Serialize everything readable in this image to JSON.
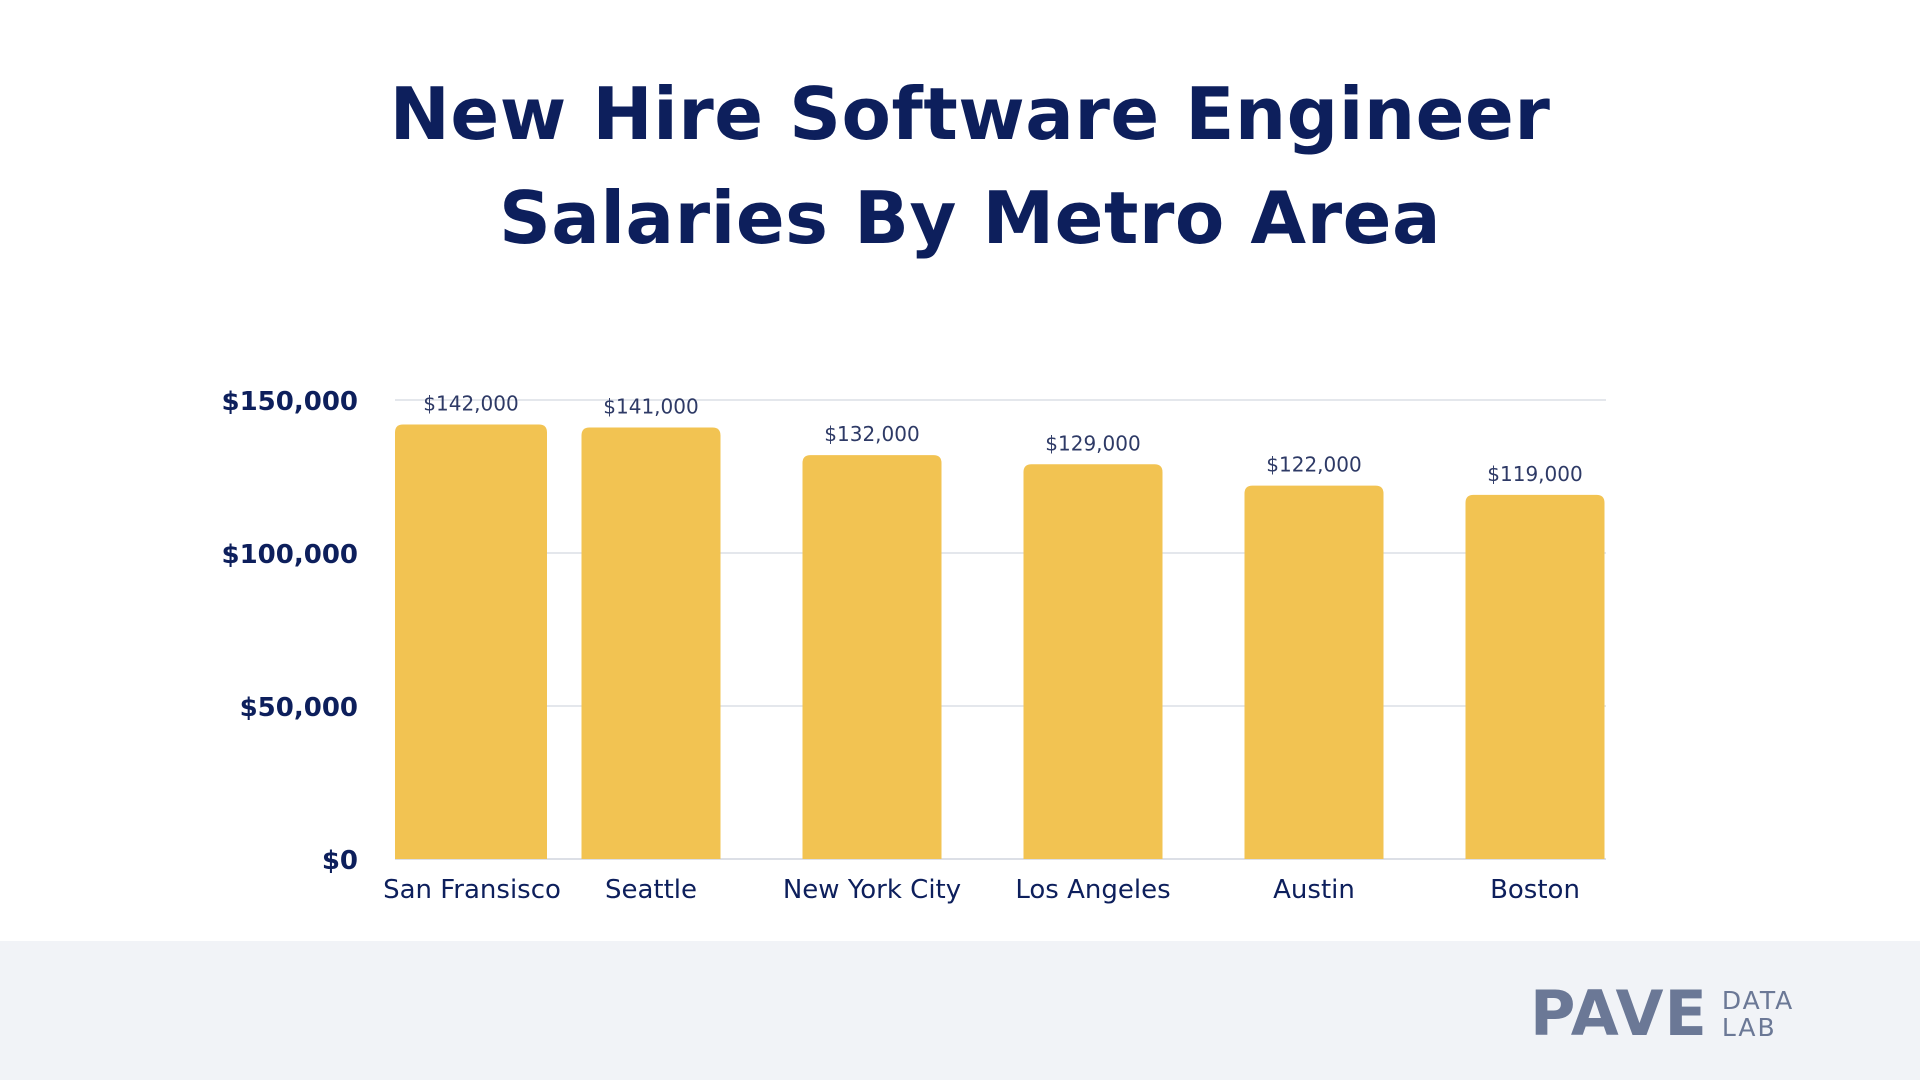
{
  "title_lines": [
    "New Hire Software Engineer",
    "Salaries By Metro Area"
  ],
  "chart_data": {
    "type": "bar",
    "title": "New Hire Software Engineer Salaries By Metro Area",
    "categories": [
      "San Fransisco",
      "Seattle",
      "New York City",
      "Los Angeles",
      "Austin",
      "Boston"
    ],
    "values": [
      142000,
      141000,
      132000,
      129000,
      122000,
      119000
    ],
    "value_labels": [
      "$142,000",
      "$141,000",
      "$132,000",
      "$129,000",
      "$122,000",
      "$119,000"
    ],
    "y_ticks": [
      0,
      50000,
      100000,
      150000
    ],
    "y_tick_labels": [
      "$0",
      "$50,000",
      "$100,000",
      "$150,000"
    ],
    "ylim": [
      0,
      150000
    ],
    "grid": true,
    "legend": "none",
    "bar_color": "#f2c352",
    "grid_color": "#dcdfe6",
    "axis_label_color": "#0d1f5c",
    "value_label_color": "#2e3a66"
  },
  "footer": {
    "logo_mark": "PAVE",
    "logo_sub_1": "DATA",
    "logo_sub_2": "LAB"
  },
  "colors": {
    "title": "#0d1f5c",
    "footer_bg": "#f1f3f7",
    "logo": "#6b7896"
  }
}
